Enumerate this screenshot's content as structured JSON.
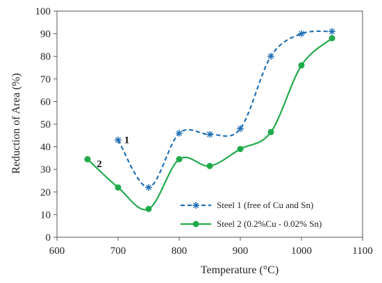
{
  "chart_data": {
    "type": "line",
    "xlabel": "Temperature (°C)",
    "ylabel": "Reduction of Area (%)",
    "xlim": [
      600,
      1100
    ],
    "ylim": [
      0,
      100
    ],
    "xticks": [
      600,
      700,
      800,
      900,
      1000,
      1100
    ],
    "yticks": [
      0,
      10,
      20,
      30,
      40,
      50,
      60,
      70,
      80,
      90,
      100
    ],
    "grid": false,
    "legend_position": "bottom-right",
    "series": [
      {
        "name": "Steel 1 (free of Cu and Sn)",
        "color": "#1f6fb4",
        "line_style": "dashed",
        "marker": "asterisk",
        "x": [
          700,
          750,
          800,
          850,
          900,
          950,
          1000,
          1050
        ],
        "y": [
          43,
          22,
          46,
          45.5,
          48,
          80,
          90,
          91
        ]
      },
      {
        "name": "Steel 2 (0.2%Cu - 0.02% Sn)",
        "color": "#1faa4a",
        "line_style": "solid",
        "marker": "circle",
        "x": [
          650,
          700,
          750,
          800,
          850,
          900,
          950,
          1000,
          1050
        ],
        "y": [
          34.5,
          22,
          12.5,
          34.5,
          31.5,
          39,
          46.5,
          76,
          88
        ]
      }
    ],
    "annotations": [
      {
        "text": "1",
        "x": 710,
        "y": 41.5
      },
      {
        "text": "2",
        "x": 665,
        "y": 31
      }
    ]
  }
}
